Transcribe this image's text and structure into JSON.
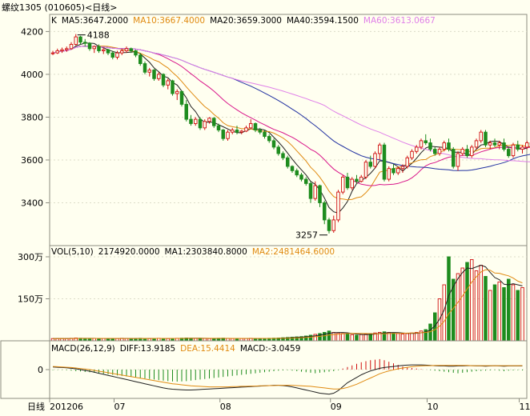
{
  "title": "螺纹1305 (010605)<日线>",
  "colors": {
    "background": "#FFFFF0",
    "frame": "#8C8C80",
    "grid": "#DCDCC8",
    "up": "#D01010",
    "down": "#1E8C1E",
    "ma5": "#202020",
    "ma10": "#E08A10",
    "ma20": "#D9168A",
    "ma40": "#2030A0",
    "ma60": "#E080E8"
  },
  "price_panel": {
    "legend": [
      {
        "text": "K",
        "color": "#000000"
      },
      {
        "text": "MA5:3647.2000",
        "color": "#000000"
      },
      {
        "text": "MA10:3667.4000",
        "color": "#E08A10"
      },
      {
        "text": "MA20:3659.3000",
        "color": "#000000"
      },
      {
        "text": "MA40:3594.1500",
        "color": "#000000"
      },
      {
        "text": "MA60:3613.0667",
        "color": "#E080E8"
      }
    ],
    "y_ticks": [
      "4200",
      "4000",
      "3800",
      "3600",
      "3400"
    ],
    "annotations": {
      "high": "4188",
      "low": "3257"
    }
  },
  "volume_panel": {
    "legend": [
      {
        "text": "VOL(5,10)",
        "color": "#000000"
      },
      {
        "text": "2174920.0000",
        "color": "#000000"
      },
      {
        "text": "MA1:2303840.8000",
        "color": "#000000"
      },
      {
        "text": "MA2:2481464.6000",
        "color": "#E08A10"
      }
    ],
    "y_ticks": [
      "300万",
      "150万"
    ]
  },
  "macd_panel": {
    "legend": [
      {
        "text": "MACD(26,12,9)",
        "color": "#000000"
      },
      {
        "text": "DIFF:13.9185",
        "color": "#000000"
      },
      {
        "text": "DEA:15.4414",
        "color": "#E08A10"
      },
      {
        "text": "MACD:-3.0459",
        "color": "#000000"
      }
    ],
    "y_ticks": [
      "0"
    ]
  },
  "x_axis": {
    "label": "日线",
    "ticks": [
      "201206",
      "07",
      "08",
      "09",
      "10",
      "11"
    ]
  },
  "chart_data": [
    {
      "type": "candlestick",
      "title": "螺纹1305 (010605)<日线>",
      "price_range": [
        3200,
        4280
      ],
      "y_ticks": [
        4200,
        4000,
        3800,
        3600,
        3400
      ],
      "ohlc": [
        [
          4100,
          4110,
          4090,
          4100
        ],
        [
          4100,
          4120,
          4095,
          4110
        ],
        [
          4110,
          4125,
          4100,
          4115
        ],
        [
          4115,
          4130,
          4105,
          4120
        ],
        [
          4120,
          4150,
          4115,
          4140
        ],
        [
          4140,
          4188,
          4135,
          4175
        ],
        [
          4175,
          4180,
          4140,
          4150
        ],
        [
          4150,
          4165,
          4130,
          4145
        ],
        [
          4145,
          4150,
          4110,
          4120
        ],
        [
          4120,
          4135,
          4100,
          4130
        ],
        [
          4130,
          4140,
          4100,
          4110
        ],
        [
          4110,
          4125,
          4095,
          4115
        ],
        [
          4115,
          4120,
          4090,
          4100
        ],
        [
          4100,
          4110,
          4070,
          4080
        ],
        [
          4080,
          4110,
          4070,
          4100
        ],
        [
          4100,
          4120,
          4090,
          4110
        ],
        [
          4110,
          4130,
          4100,
          4120
        ],
        [
          4120,
          4125,
          4100,
          4110
        ],
        [
          4110,
          4115,
          4080,
          4090
        ],
        [
          4090,
          4100,
          4040,
          4050
        ],
        [
          4050,
          4060,
          4000,
          4010
        ],
        [
          4010,
          4030,
          3990,
          4020
        ],
        [
          4020,
          4025,
          3970,
          3980
        ],
        [
          3980,
          4010,
          3970,
          4000
        ],
        [
          4000,
          4005,
          3940,
          3950
        ],
        [
          3950,
          3980,
          3930,
          3970
        ],
        [
          3970,
          3975,
          3900,
          3910
        ],
        [
          3910,
          3930,
          3880,
          3920
        ],
        [
          3920,
          3925,
          3850,
          3860
        ],
        [
          3860,
          3880,
          3780,
          3790
        ],
        [
          3790,
          3810,
          3760,
          3770
        ],
        [
          3770,
          3800,
          3760,
          3790
        ],
        [
          3790,
          3800,
          3740,
          3750
        ],
        [
          3750,
          3790,
          3740,
          3780
        ],
        [
          3780,
          3800,
          3770,
          3795
        ],
        [
          3795,
          3800,
          3750,
          3760
        ],
        [
          3760,
          3770,
          3730,
          3740
        ],
        [
          3740,
          3745,
          3690,
          3700
        ],
        [
          3700,
          3740,
          3690,
          3730
        ],
        [
          3730,
          3750,
          3720,
          3740
        ],
        [
          3740,
          3760,
          3720,
          3730
        ],
        [
          3730,
          3740,
          3720,
          3735
        ],
        [
          3735,
          3760,
          3730,
          3750
        ],
        [
          3750,
          3790,
          3745,
          3770
        ],
        [
          3770,
          3775,
          3730,
          3740
        ],
        [
          3740,
          3750,
          3720,
          3730
        ],
        [
          3730,
          3740,
          3700,
          3710
        ],
        [
          3710,
          3720,
          3680,
          3690
        ],
        [
          3690,
          3700,
          3650,
          3660
        ],
        [
          3660,
          3670,
          3620,
          3630
        ],
        [
          3630,
          3640,
          3600,
          3610
        ],
        [
          3610,
          3620,
          3560,
          3570
        ],
        [
          3570,
          3575,
          3540,
          3550
        ],
        [
          3550,
          3560,
          3520,
          3530
        ],
        [
          3530,
          3540,
          3500,
          3510
        ],
        [
          3510,
          3520,
          3480,
          3490
        ],
        [
          3490,
          3500,
          3400,
          3420
        ],
        [
          3420,
          3500,
          3410,
          3480
        ],
        [
          3480,
          3485,
          3380,
          3400
        ],
        [
          3400,
          3410,
          3300,
          3320
        ],
        [
          3320,
          3330,
          3257,
          3270
        ],
        [
          3270,
          3340,
          3260,
          3320
        ],
        [
          3320,
          3460,
          3310,
          3450
        ],
        [
          3450,
          3530,
          3440,
          3520
        ],
        [
          3520,
          3540,
          3460,
          3470
        ],
        [
          3470,
          3520,
          3460,
          3510
        ],
        [
          3510,
          3530,
          3490,
          3500
        ],
        [
          3500,
          3530,
          3495,
          3520
        ],
        [
          3520,
          3600,
          3510,
          3590
        ],
        [
          3590,
          3620,
          3560,
          3570
        ],
        [
          3570,
          3640,
          3560,
          3630
        ],
        [
          3630,
          3680,
          3600,
          3670
        ],
        [
          3670,
          3680,
          3500,
          3510
        ],
        [
          3510,
          3570,
          3500,
          3560
        ],
        [
          3560,
          3580,
          3530,
          3540
        ],
        [
          3540,
          3570,
          3530,
          3560
        ],
        [
          3560,
          3580,
          3540,
          3570
        ],
        [
          3570,
          3620,
          3560,
          3610
        ],
        [
          3610,
          3650,
          3600,
          3640
        ],
        [
          3640,
          3670,
          3630,
          3660
        ],
        [
          3660,
          3700,
          3650,
          3690
        ],
        [
          3690,
          3720,
          3670,
          3680
        ],
        [
          3680,
          3700,
          3640,
          3650
        ],
        [
          3650,
          3660,
          3620,
          3630
        ],
        [
          3630,
          3660,
          3620,
          3650
        ],
        [
          3650,
          3690,
          3640,
          3680
        ],
        [
          3680,
          3700,
          3640,
          3650
        ],
        [
          3650,
          3660,
          3560,
          3570
        ],
        [
          3570,
          3640,
          3550,
          3630
        ],
        [
          3630,
          3660,
          3620,
          3650
        ],
        [
          3650,
          3670,
          3610,
          3620
        ],
        [
          3620,
          3670,
          3610,
          3660
        ],
        [
          3660,
          3700,
          3650,
          3690
        ],
        [
          3690,
          3740,
          3680,
          3730
        ],
        [
          3730,
          3740,
          3660,
          3670
        ],
        [
          3670,
          3690,
          3650,
          3680
        ],
        [
          3680,
          3700,
          3660,
          3670
        ],
        [
          3670,
          3690,
          3650,
          3680
        ],
        [
          3680,
          3700,
          3640,
          3650
        ],
        [
          3650,
          3660,
          3610,
          3620
        ],
        [
          3620,
          3680,
          3610,
          3670
        ],
        [
          3670,
          3690,
          3640,
          3650
        ],
        [
          3650,
          3670,
          3630,
          3660
        ],
        [
          3660,
          3690,
          3650,
          3680
        ],
        [
          3680,
          3690,
          3650,
          3670
        ]
      ],
      "moving_averages": [
        {
          "name": "MA5",
          "window": 5
        },
        {
          "name": "MA10",
          "window": 10
        },
        {
          "name": "MA20",
          "window": 20
        },
        {
          "name": "MA40",
          "window": 40
        },
        {
          "name": "MA60",
          "window": 60
        }
      ],
      "labeled_extremes": {
        "high": 4188,
        "low": 3257
      }
    },
    {
      "type": "bar",
      "title": "VOL(5,10)",
      "y_max": 3400000,
      "y_ticks": [
        3000000,
        1500000
      ],
      "values": [
        80000,
        80000,
        85000,
        80000,
        90000,
        100000,
        90000,
        85000,
        80000,
        85000,
        80000,
        85000,
        80000,
        85000,
        80000,
        90000,
        85000,
        80000,
        85000,
        90000,
        85000,
        80000,
        85000,
        90000,
        85000,
        80000,
        85000,
        90000,
        95000,
        100000,
        90000,
        85000,
        90000,
        85000,
        80000,
        85000,
        90000,
        95000,
        85000,
        80000,
        85000,
        80000,
        85000,
        90000,
        85000,
        80000,
        85000,
        90000,
        95000,
        100000,
        110000,
        120000,
        130000,
        140000,
        150000,
        170000,
        200000,
        230000,
        260000,
        300000,
        350000,
        300000,
        280000,
        260000,
        240000,
        220000,
        200000,
        220000,
        240000,
        260000,
        280000,
        300000,
        320000,
        300000,
        280000,
        260000,
        240000,
        260000,
        280000,
        300000,
        350000,
        400000,
        600000,
        1000000,
        1500000,
        2000000,
        3000000,
        2200000,
        2400000,
        2600000,
        2800000,
        2900000,
        2500000,
        2700000,
        2300000,
        1800000,
        2000000,
        2100000,
        1900000,
        2200000,
        2000000,
        1800000,
        1900000
      ],
      "ma_lines": [
        {
          "name": "MA1",
          "window": 5
        },
        {
          "name": "MA2",
          "window": 10
        }
      ]
    },
    {
      "type": "bar",
      "title": "MACD(26,12,9)",
      "y_range": [
        -110,
        110
      ],
      "y_ticks": [
        0
      ],
      "series": [
        {
          "name": "MACD",
          "values": [
            -2,
            -1,
            -1,
            -2,
            -4,
            -6,
            -7,
            -9,
            -10,
            -12,
            -14,
            -16,
            -18,
            -20,
            -22,
            -24,
            -26,
            -28,
            -30,
            -32,
            -34,
            -36,
            -38,
            -40,
            -42,
            -44,
            -45,
            -46,
            -45,
            -44,
            -42,
            -40,
            -38,
            -36,
            -34,
            -32,
            -30,
            -28,
            -26,
            -24,
            -22,
            -20,
            -18,
            -16,
            -14,
            -12,
            -10,
            -8,
            -6,
            -4,
            -3,
            -2,
            -4,
            -6,
            -8,
            -10,
            -12,
            -14,
            -12,
            -10,
            -8,
            -6,
            -2,
            4,
            10,
            16,
            22,
            28,
            32,
            36,
            38,
            40,
            36,
            30,
            24,
            18,
            12,
            8,
            6,
            4,
            2,
            0,
            -2,
            -4,
            -6,
            -8,
            -10,
            -12,
            -14,
            -12,
            -10,
            -8,
            -6,
            -5,
            -4,
            -3,
            -2,
            -4,
            -6,
            -4,
            -3,
            -2,
            -3
          ]
        },
        {
          "name": "DIFF",
          "values": [
            10,
            9,
            8,
            7,
            5,
            3,
            0,
            -3,
            -6,
            -10,
            -14,
            -18,
            -22,
            -26,
            -30,
            -34,
            -38,
            -42,
            -46,
            -50,
            -54,
            -58,
            -62,
            -66,
            -70,
            -73,
            -75,
            -76,
            -77,
            -78,
            -78,
            -77,
            -76,
            -75,
            -74,
            -73,
            -72,
            -71,
            -70,
            -69,
            -68,
            -67,
            -66,
            -65,
            -64,
            -63,
            -62,
            -61,
            -60,
            -60,
            -61,
            -63,
            -66,
            -70,
            -74,
            -78,
            -82,
            -86,
            -90,
            -92,
            -94,
            -90,
            -80,
            -65,
            -50,
            -40,
            -30,
            -20,
            -12,
            -5,
            0,
            5,
            8,
            10,
            12,
            14,
            16,
            17,
            18,
            18,
            18,
            17,
            16,
            15,
            14,
            14,
            13,
            13,
            14,
            14,
            15,
            15,
            14,
            14,
            13,
            14,
            15,
            14,
            13,
            14,
            14,
            14,
            14
          ]
        },
        {
          "name": "DEA",
          "values": [
            12,
            11,
            10,
            9,
            8,
            6,
            4,
            2,
            0,
            -3,
            -6,
            -9,
            -12,
            -15,
            -18,
            -21,
            -24,
            -27,
            -30,
            -33,
            -36,
            -39,
            -42,
            -45,
            -48,
            -51,
            -54,
            -56,
            -58,
            -60,
            -62,
            -63,
            -64,
            -65,
            -66,
            -66,
            -66,
            -66,
            -66,
            -65,
            -65,
            -64,
            -64,
            -63,
            -63,
            -62,
            -62,
            -61,
            -61,
            -60,
            -60,
            -60,
            -60,
            -61,
            -62,
            -63,
            -64,
            -66,
            -68,
            -70,
            -72,
            -74,
            -74,
            -72,
            -68,
            -62,
            -56,
            -48,
            -40,
            -32,
            -24,
            -16,
            -10,
            -5,
            -1,
            3,
            6,
            9,
            11,
            13,
            14,
            15,
            15,
            16,
            16,
            16,
            16,
            16,
            16,
            16,
            16,
            15,
            15,
            15,
            15,
            15,
            15,
            15,
            15,
            15,
            15,
            15,
            15.4
          ]
        }
      ]
    }
  ]
}
